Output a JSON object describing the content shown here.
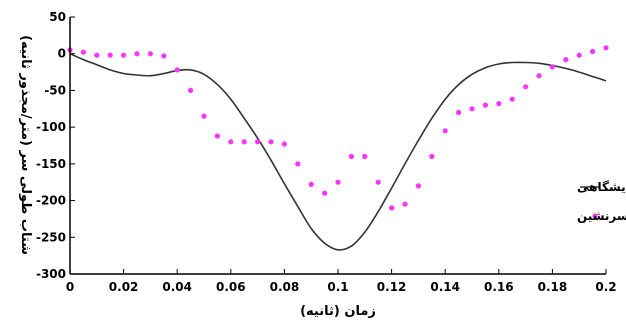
{
  "chart_data": {
    "type": "line",
    "xlabel": "زمان (ثانیه)",
    "ylabel": "شتاب طولی سر (متر/مجذور ثانیه)",
    "xlim": [
      0,
      0.2
    ],
    "ylim": [
      -300,
      50
    ],
    "x_ticks": [
      "0",
      "0.02",
      "0.04",
      "0.06",
      "0.08",
      "0.1",
      "0.12",
      "0.14",
      "0.16",
      "0.18",
      "0.2"
    ],
    "y_ticks": [
      "50",
      "0",
      "-50",
      "-100",
      "-150",
      "-200",
      "-250",
      "-300"
    ],
    "x_tick_values": [
      0,
      0.02,
      0.04,
      0.06,
      0.08,
      0.1,
      0.12,
      0.14,
      0.16,
      0.18,
      0.2
    ],
    "y_tick_values": [
      50,
      0,
      -50,
      -100,
      -150,
      -200,
      -250,
      -300
    ],
    "legend_position": "right",
    "grid": false,
    "series": [
      {
        "name": "نتایج آزمایشگاهی",
        "style": "solid",
        "color": "#333333",
        "x": [
          0,
          0.005,
          0.01,
          0.015,
          0.02,
          0.025,
          0.03,
          0.035,
          0.04,
          0.045,
          0.05,
          0.055,
          0.06,
          0.065,
          0.07,
          0.075,
          0.08,
          0.085,
          0.09,
          0.095,
          0.1,
          0.105,
          0.11,
          0.115,
          0.12,
          0.125,
          0.13,
          0.135,
          0.14,
          0.145,
          0.15,
          0.155,
          0.16,
          0.165,
          0.17,
          0.175,
          0.18,
          0.185,
          0.19,
          0.195,
          0.2
        ],
        "y": [
          0,
          -8,
          -15,
          -22,
          -27,
          -29,
          -30,
          -27,
          -23,
          -22,
          -28,
          -42,
          -62,
          -88,
          -115,
          -145,
          -177,
          -208,
          -238,
          -258,
          -267,
          -262,
          -243,
          -215,
          -183,
          -150,
          -118,
          -88,
          -62,
          -42,
          -28,
          -19,
          -14,
          -12,
          -12,
          -13,
          -16,
          -20,
          -25,
          -31,
          -37
        ]
      },
      {
        "name": "مدل سرنشین",
        "style": "dotted",
        "color": "#ff33ff",
        "x": [
          0,
          0.005,
          0.01,
          0.015,
          0.02,
          0.025,
          0.03,
          0.035,
          0.04,
          0.045,
          0.05,
          0.055,
          0.06,
          0.065,
          0.07,
          0.075,
          0.08,
          0.085,
          0.09,
          0.095,
          0.1,
          0.105,
          0.11,
          0.115,
          0.12,
          0.125,
          0.13,
          0.135,
          0.14,
          0.145,
          0.15,
          0.155,
          0.16,
          0.165,
          0.17,
          0.175,
          0.18,
          0.185,
          0.19,
          0.195,
          0.2
        ],
        "y": [
          5,
          2,
          -2,
          -2,
          -2,
          0,
          0,
          -3,
          -22,
          -50,
          -85,
          -112,
          -120,
          -120,
          -120,
          -120,
          -123,
          -150,
          -178,
          -190,
          -175,
          -140,
          -140,
          -175,
          -210,
          -205,
          -180,
          -140,
          -105,
          -80,
          -75,
          -70,
          -68,
          -62,
          -45,
          -30,
          -18,
          -8,
          -2,
          3,
          8
        ]
      }
    ]
  }
}
